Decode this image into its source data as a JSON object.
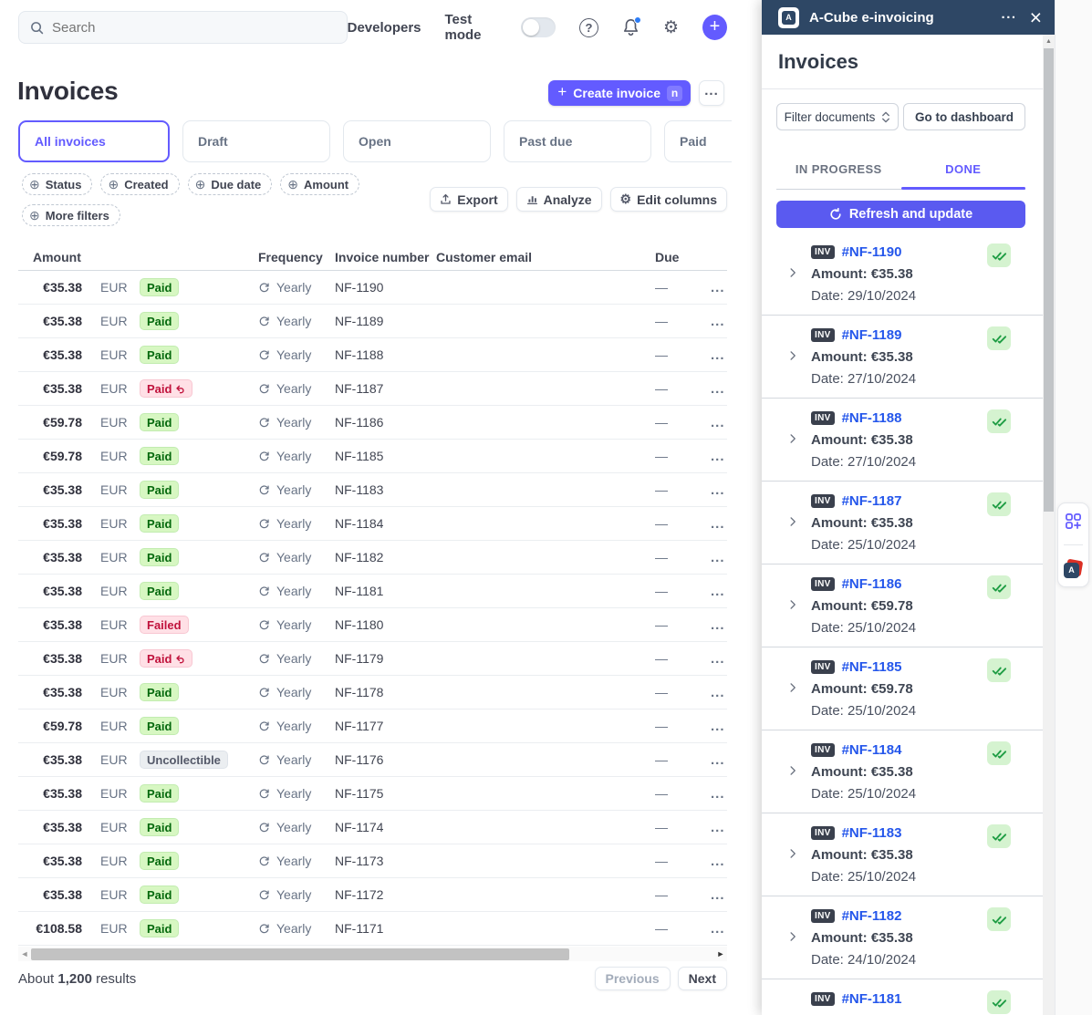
{
  "colors": {
    "accent_purple": "#635bff",
    "panel_header_navy": "#2e4765",
    "refresh_button_indigo": "#5a5af0",
    "link_blue": "#2456eb",
    "badge_success_bg": "#d7f7c2",
    "badge_success_text": "#05690d",
    "badge_danger_bg": "#ffe0e6",
    "badge_danger_text": "#c0123c",
    "badge_neutral_bg": "#ebeef1",
    "badge_neutral_text": "#545969",
    "notification_dot_blue": "#2d7df6"
  },
  "icons": {
    "search": "magnifier",
    "help": "?",
    "bell": "bell with blue dot",
    "gear": "⚙",
    "plus": "+",
    "overflow": "···",
    "chip_plus": "⊕",
    "frequency_cycle": "recurring arrows",
    "due_empty": "—",
    "scroll_up_arrow": "▲",
    "hscroll_left": "◄",
    "hscroll_right": "►"
  },
  "topbar": {
    "search_placeholder": "Search",
    "developers_label": "Developers",
    "test_mode_label": "Test mode",
    "test_mode_on": false
  },
  "page": {
    "title": "Invoices",
    "create_invoice_label": "Create invoice",
    "create_invoice_shortcut": "n",
    "tabs": [
      "All invoices",
      "Draft",
      "Open",
      "Past due",
      "Paid"
    ],
    "active_tab": "All invoices",
    "filters": [
      "Status",
      "Created",
      "Due date",
      "Amount",
      "More filters"
    ],
    "actions": {
      "export": "Export",
      "analyze": "Analyze",
      "edit_columns": "Edit columns"
    }
  },
  "table": {
    "headers": {
      "amount": "Amount",
      "frequency": "Frequency",
      "invoice_number": "Invoice number",
      "customer_email": "Customer email",
      "due": "Due"
    },
    "rows": [
      {
        "amount": "€35.38",
        "currency": "EUR",
        "status": "Paid",
        "status_type": "success",
        "refund_icon": false,
        "frequency": "Yearly",
        "invoice_number": "NF-1190",
        "email_redacted": true,
        "email_w": 194,
        "due": "—"
      },
      {
        "amount": "€35.38",
        "currency": "EUR",
        "status": "Paid",
        "status_type": "success",
        "refund_icon": false,
        "frequency": "Yearly",
        "invoice_number": "NF-1189",
        "email_redacted": true,
        "email_w": 184,
        "due": "—"
      },
      {
        "amount": "€35.38",
        "currency": "EUR",
        "status": "Paid",
        "status_type": "success",
        "refund_icon": false,
        "frequency": "Yearly",
        "invoice_number": "NF-1188",
        "email_redacted": true,
        "email_w": 124,
        "due": "—"
      },
      {
        "amount": "€35.38",
        "currency": "EUR",
        "status": "Paid",
        "status_type": "refunded",
        "refund_icon": true,
        "frequency": "Yearly",
        "invoice_number": "NF-1187",
        "email_redacted": true,
        "email_w": 150,
        "due": "—"
      },
      {
        "amount": "€59.78",
        "currency": "EUR",
        "status": "Paid",
        "status_type": "success",
        "refund_icon": false,
        "frequency": "Yearly",
        "invoice_number": "NF-1186",
        "email_redacted": true,
        "email_w": 120,
        "due": "—"
      },
      {
        "amount": "€59.78",
        "currency": "EUR",
        "status": "Paid",
        "status_type": "success",
        "refund_icon": false,
        "frequency": "Yearly",
        "invoice_number": "NF-1185",
        "email_redacted": true,
        "email_w": 190,
        "due": "—"
      },
      {
        "amount": "€35.38",
        "currency": "EUR",
        "status": "Paid",
        "status_type": "success",
        "refund_icon": false,
        "frequency": "Yearly",
        "invoice_number": "NF-1183",
        "email_redacted": true,
        "email_w": 160,
        "due": "—"
      },
      {
        "amount": "€35.38",
        "currency": "EUR",
        "status": "Paid",
        "status_type": "success",
        "refund_icon": false,
        "frequency": "Yearly",
        "invoice_number": "NF-1184",
        "email_redacted": true,
        "email_w": 150,
        "due": "—"
      },
      {
        "amount": "€35.38",
        "currency": "EUR",
        "status": "Paid",
        "status_type": "success",
        "refund_icon": false,
        "frequency": "Yearly",
        "invoice_number": "NF-1182",
        "email_redacted": true,
        "email_w": 218,
        "due": "—"
      },
      {
        "amount": "€35.38",
        "currency": "EUR",
        "status": "Paid",
        "status_type": "success",
        "refund_icon": false,
        "frequency": "Yearly",
        "invoice_number": "NF-1181",
        "email_redacted": true,
        "email_w": 174,
        "due": "—"
      },
      {
        "amount": "€35.38",
        "currency": "EUR",
        "status": "Failed",
        "status_type": "failed",
        "refund_icon": false,
        "frequency": "Yearly",
        "invoice_number": "NF-1180",
        "email_redacted": true,
        "email_w": 170,
        "due": "—"
      },
      {
        "amount": "€35.38",
        "currency": "EUR",
        "status": "Paid",
        "status_type": "refunded",
        "refund_icon": true,
        "frequency": "Yearly",
        "invoice_number": "NF-1179",
        "email_redacted": true,
        "email_w": 152,
        "due": "—"
      },
      {
        "amount": "€35.38",
        "currency": "EUR",
        "status": "Paid",
        "status_type": "success",
        "refund_icon": false,
        "frequency": "Yearly",
        "invoice_number": "NF-1178",
        "email_redacted": true,
        "email_w": 112,
        "due": "—"
      },
      {
        "amount": "€59.78",
        "currency": "EUR",
        "status": "Paid",
        "status_type": "success",
        "refund_icon": false,
        "frequency": "Yearly",
        "invoice_number": "NF-1177",
        "email_redacted": true,
        "email_w": 130,
        "due": "—"
      },
      {
        "amount": "€35.38",
        "currency": "EUR",
        "status": "Uncollectible",
        "status_type": "uncollectible",
        "refund_icon": false,
        "frequency": "Yearly",
        "invoice_number": "NF-1176",
        "email_redacted": true,
        "email_w": 140,
        "due": "—"
      },
      {
        "amount": "€35.38",
        "currency": "EUR",
        "status": "Paid",
        "status_type": "success",
        "refund_icon": false,
        "frequency": "Yearly",
        "invoice_number": "NF-1175",
        "email_redacted": true,
        "email_w": 142,
        "due": "—"
      },
      {
        "amount": "€35.38",
        "currency": "EUR",
        "status": "Paid",
        "status_type": "success",
        "refund_icon": false,
        "frequency": "Yearly",
        "invoice_number": "NF-1174",
        "email_redacted": true,
        "email_w": 157,
        "due": "—"
      },
      {
        "amount": "€35.38",
        "currency": "EUR",
        "status": "Paid",
        "status_type": "success",
        "refund_icon": false,
        "frequency": "Yearly",
        "invoice_number": "NF-1173",
        "email_redacted": true,
        "email_w": 144,
        "due": "—"
      },
      {
        "amount": "€35.38",
        "currency": "EUR",
        "status": "Paid",
        "status_type": "success",
        "refund_icon": false,
        "frequency": "Yearly",
        "invoice_number": "NF-1172",
        "email_redacted": true,
        "email_w": 190,
        "due": "—"
      },
      {
        "amount": "€108.58",
        "currency": "EUR",
        "status": "Paid",
        "status_type": "success",
        "refund_icon": false,
        "frequency": "Yearly",
        "invoice_number": "NF-1171",
        "email_redacted": true,
        "email_w": 152,
        "due": "—"
      }
    ]
  },
  "pagination": {
    "results_prefix": "About ",
    "results_count": "1,200",
    "results_suffix": " results",
    "previous_label": "Previous",
    "next_label": "Next"
  },
  "panel": {
    "app_title": "A-Cube e-invoicing",
    "logo_letter": "A",
    "heading": "Invoices",
    "filter_button": "Filter documents",
    "dashboard_button": "Go to dashboard",
    "tabs": {
      "in_progress": "IN PROGRESS",
      "done": "DONE",
      "active": "DONE"
    },
    "refresh_button": "Refresh and update",
    "badge_label": "INV",
    "items": [
      {
        "number": "#NF-1190",
        "amount_label": "Amount: €35.38",
        "date_label": "Date: 29/10/2024",
        "done": true
      },
      {
        "number": "#NF-1189",
        "amount_label": "Amount: €35.38",
        "date_label": "Date: 27/10/2024",
        "done": true
      },
      {
        "number": "#NF-1188",
        "amount_label": "Amount: €35.38",
        "date_label": "Date: 27/10/2024",
        "done": true
      },
      {
        "number": "#NF-1187",
        "amount_label": "Amount: €35.38",
        "date_label": "Date: 25/10/2024",
        "done": true
      },
      {
        "number": "#NF-1186",
        "amount_label": "Amount: €59.78",
        "date_label": "Date: 25/10/2024",
        "done": true
      },
      {
        "number": "#NF-1185",
        "amount_label": "Amount: €59.78",
        "date_label": "Date: 25/10/2024",
        "done": true
      },
      {
        "number": "#NF-1184",
        "amount_label": "Amount: €35.38",
        "date_label": "Date: 25/10/2024",
        "done": true
      },
      {
        "number": "#NF-1183",
        "amount_label": "Amount: €35.38",
        "date_label": "Date: 25/10/2024",
        "done": true
      },
      {
        "number": "#NF-1182",
        "amount_label": "Amount: €35.38",
        "date_label": "Date: 24/10/2024",
        "done": true
      },
      {
        "number": "#NF-1181",
        "amount_label": "",
        "date_label": "",
        "done": true
      }
    ]
  }
}
